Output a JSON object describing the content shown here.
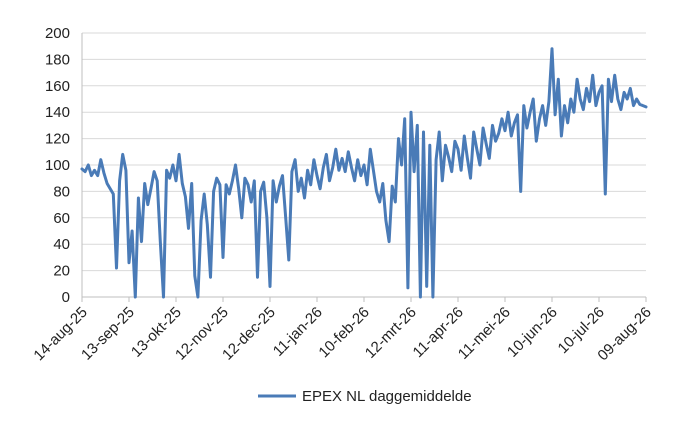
{
  "chart_data": {
    "type": "line",
    "title": "",
    "xlabel": "",
    "ylabel": "",
    "ylim": [
      0,
      200
    ],
    "y_ticks": [
      0,
      20,
      40,
      60,
      80,
      100,
      120,
      140,
      160,
      180,
      200
    ],
    "x_range": [
      "2025-08-14",
      "2026-08-09"
    ],
    "x_ticks": [
      {
        "date": "2025-08-14",
        "label": "14-aug-25"
      },
      {
        "date": "2025-09-13",
        "label": "13-sep-25"
      },
      {
        "date": "2025-10-13",
        "label": "13-okt-25"
      },
      {
        "date": "2025-11-12",
        "label": "12-nov-25"
      },
      {
        "date": "2025-12-12",
        "label": "12-dec-25"
      },
      {
        "date": "2026-01-11",
        "label": "11-jan-26"
      },
      {
        "date": "2026-02-10",
        "label": "10-feb-26"
      },
      {
        "date": "2026-03-12",
        "label": "12-mrt-26"
      },
      {
        "date": "2026-04-11",
        "label": "11-apr-26"
      },
      {
        "date": "2026-05-11",
        "label": "11-mei-26"
      },
      {
        "date": "2026-06-10",
        "label": "10-jun-26"
      },
      {
        "date": "2026-07-10",
        "label": "10-jul-26"
      },
      {
        "date": "2026-08-09",
        "label": "09-aug-26"
      }
    ],
    "grid": {
      "horizontal": true,
      "vertical": false
    },
    "legend_position": "bottom-center",
    "series": [
      {
        "name": "EPEX NL daggemiddelde",
        "color": "#4a7bb7",
        "points": [
          [
            "2025-08-14",
            97
          ],
          [
            "2025-08-16",
            95
          ],
          [
            "2025-08-18",
            100
          ],
          [
            "2025-08-20",
            92
          ],
          [
            "2025-08-22",
            96
          ],
          [
            "2025-08-24",
            92
          ],
          [
            "2025-08-26",
            104
          ],
          [
            "2025-08-28",
            94
          ],
          [
            "2025-08-30",
            86
          ],
          [
            "2025-09-01",
            82
          ],
          [
            "2025-09-03",
            78
          ],
          [
            "2025-09-05",
            22
          ],
          [
            "2025-09-07",
            88
          ],
          [
            "2025-09-09",
            108
          ],
          [
            "2025-09-11",
            96
          ],
          [
            "2025-09-13",
            26
          ],
          [
            "2025-09-15",
            50
          ],
          [
            "2025-09-17",
            0
          ],
          [
            "2025-09-19",
            75
          ],
          [
            "2025-09-21",
            42
          ],
          [
            "2025-09-23",
            86
          ],
          [
            "2025-09-25",
            70
          ],
          [
            "2025-09-27",
            82
          ],
          [
            "2025-09-29",
            95
          ],
          [
            "2025-10-01",
            88
          ],
          [
            "2025-10-03",
            42
          ],
          [
            "2025-10-05",
            0
          ],
          [
            "2025-10-07",
            96
          ],
          [
            "2025-10-09",
            90
          ],
          [
            "2025-10-11",
            100
          ],
          [
            "2025-10-13",
            88
          ],
          [
            "2025-10-15",
            108
          ],
          [
            "2025-10-17",
            86
          ],
          [
            "2025-10-19",
            76
          ],
          [
            "2025-10-21",
            52
          ],
          [
            "2025-10-23",
            86
          ],
          [
            "2025-10-25",
            16
          ],
          [
            "2025-10-27",
            0
          ],
          [
            "2025-10-29",
            58
          ],
          [
            "2025-10-31",
            78
          ],
          [
            "2025-11-02",
            55
          ],
          [
            "2025-11-04",
            15
          ],
          [
            "2025-11-06",
            80
          ],
          [
            "2025-11-08",
            90
          ],
          [
            "2025-11-10",
            85
          ],
          [
            "2025-11-12",
            30
          ],
          [
            "2025-11-14",
            85
          ],
          [
            "2025-11-16",
            78
          ],
          [
            "2025-11-18",
            88
          ],
          [
            "2025-11-20",
            100
          ],
          [
            "2025-11-22",
            82
          ],
          [
            "2025-11-24",
            60
          ],
          [
            "2025-11-26",
            90
          ],
          [
            "2025-11-28",
            85
          ],
          [
            "2025-11-30",
            72
          ],
          [
            "2025-12-02",
            88
          ],
          [
            "2025-12-04",
            15
          ],
          [
            "2025-12-06",
            80
          ],
          [
            "2025-12-08",
            87
          ],
          [
            "2025-12-10",
            60
          ],
          [
            "2025-12-12",
            8
          ],
          [
            "2025-12-14",
            88
          ],
          [
            "2025-12-16",
            72
          ],
          [
            "2025-12-18",
            84
          ],
          [
            "2025-12-20",
            92
          ],
          [
            "2025-12-22",
            60
          ],
          [
            "2025-12-24",
            28
          ],
          [
            "2025-12-26",
            95
          ],
          [
            "2025-12-28",
            104
          ],
          [
            "2025-12-30",
            80
          ],
          [
            "2026-01-01",
            90
          ],
          [
            "2026-01-03",
            75
          ],
          [
            "2026-01-05",
            96
          ],
          [
            "2026-01-07",
            85
          ],
          [
            "2026-01-09",
            104
          ],
          [
            "2026-01-11",
            92
          ],
          [
            "2026-01-13",
            82
          ],
          [
            "2026-01-15",
            98
          ],
          [
            "2026-01-17",
            108
          ],
          [
            "2026-01-19",
            88
          ],
          [
            "2026-01-21",
            98
          ],
          [
            "2026-01-23",
            112
          ],
          [
            "2026-01-25",
            96
          ],
          [
            "2026-01-27",
            105
          ],
          [
            "2026-01-29",
            95
          ],
          [
            "2026-01-31",
            110
          ],
          [
            "2026-02-02",
            98
          ],
          [
            "2026-02-04",
            88
          ],
          [
            "2026-02-06",
            104
          ],
          [
            "2026-02-08",
            92
          ],
          [
            "2026-02-10",
            100
          ],
          [
            "2026-02-12",
            85
          ],
          [
            "2026-02-14",
            112
          ],
          [
            "2026-02-16",
            96
          ],
          [
            "2026-02-18",
            80
          ],
          [
            "2026-02-20",
            72
          ],
          [
            "2026-02-22",
            86
          ],
          [
            "2026-02-24",
            58
          ],
          [
            "2026-02-26",
            42
          ],
          [
            "2026-02-28",
            84
          ],
          [
            "2026-03-02",
            72
          ],
          [
            "2026-03-04",
            120
          ],
          [
            "2026-03-06",
            100
          ],
          [
            "2026-03-08",
            135
          ],
          [
            "2026-03-10",
            7
          ],
          [
            "2026-03-12",
            140
          ],
          [
            "2026-03-14",
            95
          ],
          [
            "2026-03-16",
            130
          ],
          [
            "2026-03-18",
            0
          ],
          [
            "2026-03-20",
            125
          ],
          [
            "2026-03-22",
            8
          ],
          [
            "2026-03-24",
            115
          ],
          [
            "2026-03-26",
            0
          ],
          [
            "2026-03-28",
            104
          ],
          [
            "2026-03-30",
            125
          ],
          [
            "2026-04-01",
            88
          ],
          [
            "2026-04-03",
            115
          ],
          [
            "2026-04-05",
            106
          ],
          [
            "2026-04-07",
            95
          ],
          [
            "2026-04-09",
            118
          ],
          [
            "2026-04-11",
            112
          ],
          [
            "2026-04-13",
            96
          ],
          [
            "2026-04-15",
            122
          ],
          [
            "2026-04-17",
            105
          ],
          [
            "2026-04-19",
            90
          ],
          [
            "2026-04-21",
            125
          ],
          [
            "2026-04-23",
            112
          ],
          [
            "2026-04-25",
            100
          ],
          [
            "2026-04-27",
            128
          ],
          [
            "2026-04-29",
            116
          ],
          [
            "2026-05-01",
            105
          ],
          [
            "2026-05-03",
            130
          ],
          [
            "2026-05-05",
            118
          ],
          [
            "2026-05-07",
            124
          ],
          [
            "2026-05-09",
            135
          ],
          [
            "2026-05-11",
            126
          ],
          [
            "2026-05-13",
            140
          ],
          [
            "2026-05-15",
            122
          ],
          [
            "2026-05-17",
            132
          ],
          [
            "2026-05-19",
            138
          ],
          [
            "2026-05-21",
            80
          ],
          [
            "2026-05-23",
            145
          ],
          [
            "2026-05-25",
            128
          ],
          [
            "2026-05-27",
            140
          ],
          [
            "2026-05-29",
            150
          ],
          [
            "2026-05-31",
            118
          ],
          [
            "2026-06-02",
            135
          ],
          [
            "2026-06-04",
            145
          ],
          [
            "2026-06-06",
            130
          ],
          [
            "2026-06-08",
            148
          ],
          [
            "2026-06-10",
            188
          ],
          [
            "2026-06-12",
            138
          ],
          [
            "2026-06-14",
            165
          ],
          [
            "2026-06-16",
            122
          ],
          [
            "2026-06-18",
            145
          ],
          [
            "2026-06-20",
            132
          ],
          [
            "2026-06-22",
            150
          ],
          [
            "2026-06-24",
            140
          ],
          [
            "2026-06-26",
            165
          ],
          [
            "2026-06-28",
            150
          ],
          [
            "2026-06-30",
            142
          ],
          [
            "2026-07-02",
            158
          ],
          [
            "2026-07-04",
            148
          ],
          [
            "2026-07-06",
            168
          ],
          [
            "2026-07-08",
            145
          ],
          [
            "2026-07-10",
            155
          ],
          [
            "2026-07-12",
            160
          ],
          [
            "2026-07-14",
            78
          ],
          [
            "2026-07-16",
            165
          ],
          [
            "2026-07-18",
            148
          ],
          [
            "2026-07-20",
            168
          ],
          [
            "2026-07-22",
            150
          ],
          [
            "2026-07-24",
            142
          ],
          [
            "2026-07-26",
            155
          ],
          [
            "2026-07-28",
            150
          ],
          [
            "2026-07-30",
            158
          ],
          [
            "2026-08-01",
            145
          ],
          [
            "2026-08-03",
            150
          ],
          [
            "2026-08-05",
            146
          ],
          [
            "2026-08-07",
            145
          ],
          [
            "2026-08-09",
            144
          ]
        ]
      }
    ]
  }
}
